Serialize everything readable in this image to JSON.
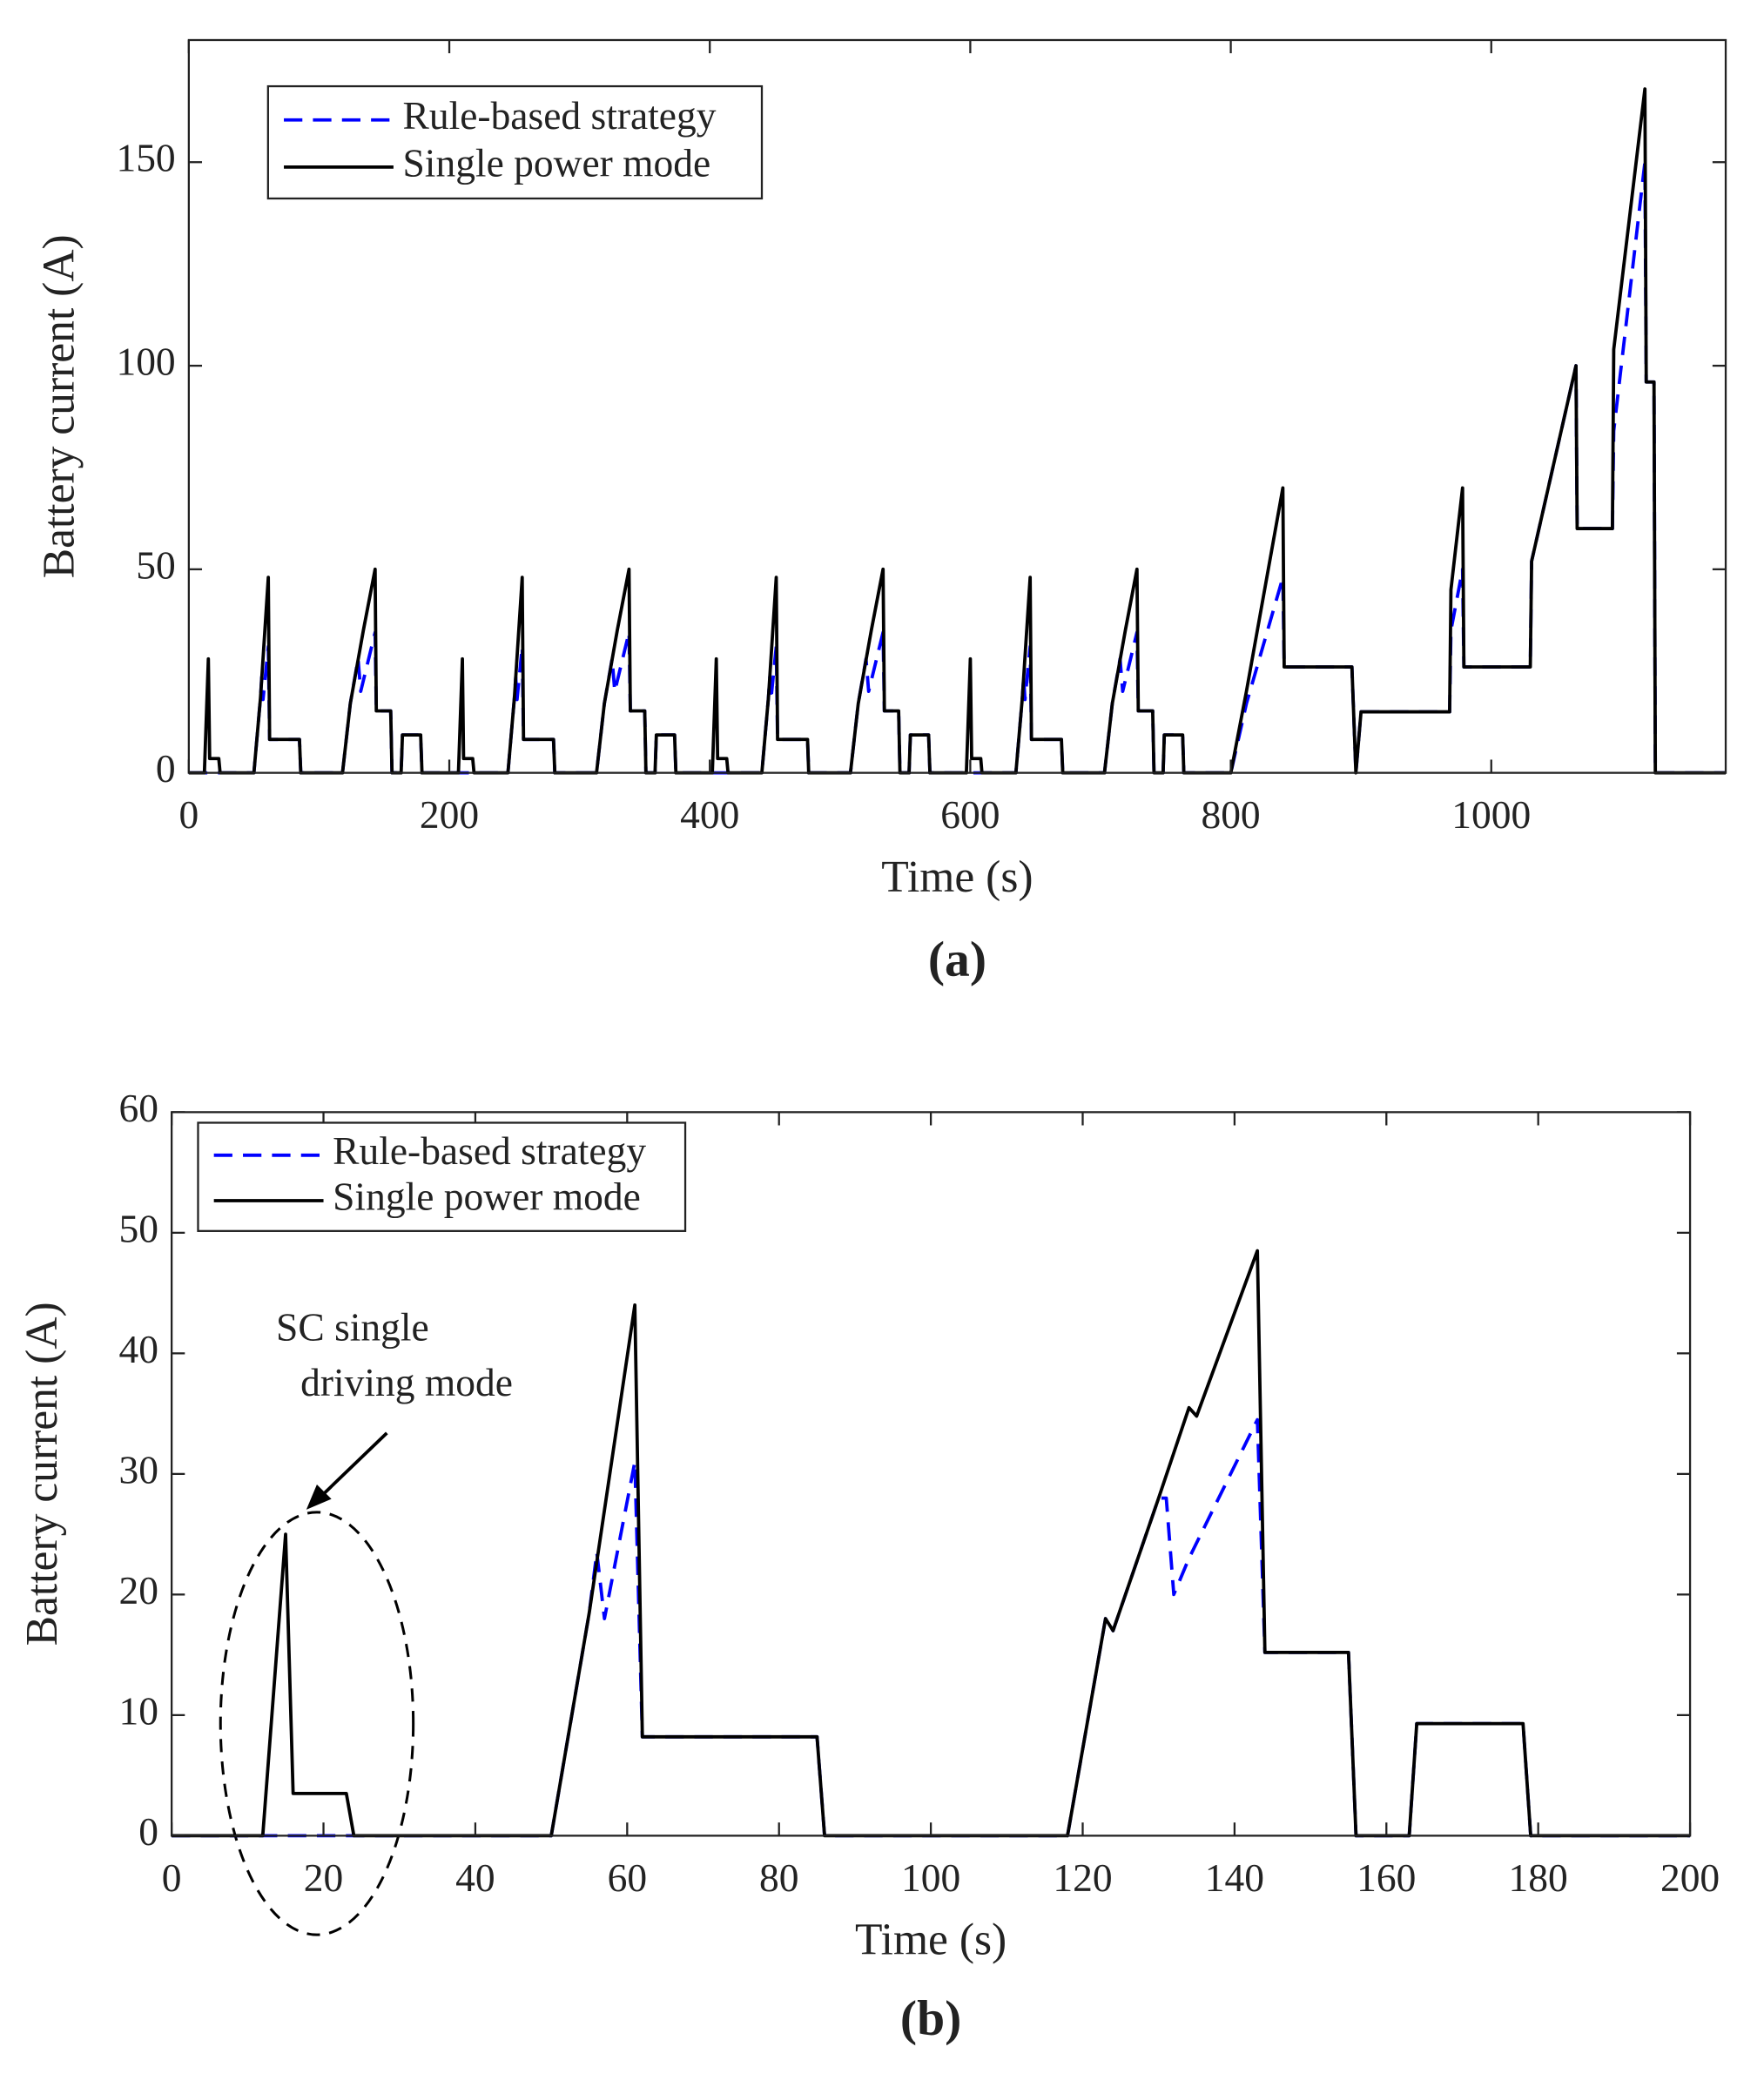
{
  "chart_data": [
    {
      "type": "line",
      "label": "(a)",
      "xlabel": "Time (s)",
      "ylabel": "Battery current (A)",
      "xlim": [
        0,
        1180
      ],
      "ylim": [
        0,
        180
      ],
      "xticks": [
        0,
        200,
        400,
        600,
        800,
        1000
      ],
      "yticks": [
        0,
        50,
        100,
        150
      ],
      "series": [
        {
          "name": "Rule-based strategy",
          "color": "#0000ff",
          "dash": true,
          "x": [
            0,
            12,
            24,
            50,
            55,
            56,
            57,
            61,
            62,
            85,
            86,
            118,
            124,
            130,
            132,
            143,
            144,
            155,
            156,
            163,
            164,
            178,
            179,
            207,
            219,
            245,
            250,
            251,
            252,
            256,
            257,
            280,
            281,
            313,
            319,
            325,
            327,
            338,
            339,
            350,
            351,
            358,
            359,
            373,
            374,
            402,
            414,
            440,
            445,
            446,
            447,
            451,
            452,
            475,
            476,
            508,
            514,
            520,
            522,
            533,
            534,
            545,
            546,
            553,
            554,
            568,
            569,
            597,
            609,
            635,
            640,
            641,
            642,
            646,
            647,
            670,
            671,
            703,
            709,
            715,
            717,
            728,
            729,
            740,
            741,
            748,
            749,
            763,
            764,
            800,
            812,
            840,
            841,
            893,
            896,
            900,
            968,
            969,
            978,
            979,
            1030,
            1031,
            1065,
            1066,
            1093,
            1094,
            1118,
            1119,
            1125,
            1126,
            1180
          ],
          "values": [
            0,
            0,
            0,
            0,
            18.5,
            23.5,
            18,
            31,
            8.2,
            8.2,
            0,
            0,
            17,
            28,
            20,
            34.5,
            15.2,
            15.2,
            0,
            0,
            9.3,
            9.3,
            0,
            0,
            0,
            0,
            18.5,
            23.5,
            18,
            31,
            8.2,
            8.2,
            0,
            0,
            17,
            28,
            20,
            34.5,
            15.2,
            15.2,
            0,
            0,
            9.3,
            9.3,
            0,
            0,
            0,
            0,
            18.5,
            23.5,
            18,
            31,
            8.2,
            8.2,
            0,
            0,
            17,
            28,
            20,
            34.5,
            15.2,
            15.2,
            0,
            0,
            9.3,
            9.3,
            0,
            0,
            0,
            0,
            18.5,
            23.5,
            18,
            31,
            8.2,
            8.2,
            0,
            0,
            17,
            28,
            20,
            34.5,
            15.2,
            15.2,
            0,
            0,
            9.3,
            9.3,
            0,
            0,
            17,
            48,
            26,
            26,
            0,
            15,
            15,
            35,
            50,
            26,
            26,
            52,
            100,
            60,
            60,
            84,
            150,
            96,
            96,
            0,
            0
          ]
        },
        {
          "name": "Single power mode",
          "color": "#000000",
          "dash": false,
          "x": [
            0,
            12,
            15,
            16,
            23,
            24,
            50,
            55,
            61,
            62,
            85,
            86,
            118,
            124,
            134,
            143,
            144,
            155,
            156,
            163,
            164,
            178,
            179,
            207,
            210,
            211,
            218,
            219,
            245,
            250,
            256,
            257,
            280,
            281,
            313,
            319,
            329,
            338,
            339,
            350,
            351,
            358,
            359,
            373,
            374,
            402,
            405,
            406,
            413,
            414,
            440,
            445,
            451,
            452,
            475,
            476,
            508,
            514,
            524,
            533,
            534,
            545,
            546,
            553,
            554,
            568,
            569,
            597,
            600,
            601,
            608,
            609,
            635,
            640,
            646,
            647,
            670,
            671,
            703,
            709,
            719,
            728,
            729,
            740,
            741,
            748,
            749,
            763,
            764,
            800,
            812,
            840,
            841,
            893,
            896,
            900,
            968,
            969,
            978,
            979,
            1030,
            1031,
            1065,
            1066,
            1093,
            1094,
            1118,
            1119,
            1125,
            1126,
            1180
          ],
          "values": [
            0,
            0,
            28,
            3.5,
            3.5,
            0,
            0,
            18.5,
            48,
            8.2,
            8.2,
            0,
            0,
            17,
            35,
            50,
            15.2,
            15.2,
            0,
            0,
            9.3,
            9.3,
            0,
            0,
            28,
            3.5,
            3.5,
            0,
            0,
            18.5,
            48,
            8.2,
            8.2,
            0,
            0,
            17,
            35,
            50,
            15.2,
            15.2,
            0,
            0,
            9.3,
            9.3,
            0,
            0,
            28,
            3.5,
            3.5,
            0,
            0,
            18.5,
            48,
            8.2,
            8.2,
            0,
            0,
            17,
            35,
            50,
            15.2,
            15.2,
            0,
            0,
            9.3,
            9.3,
            0,
            0,
            28,
            3.5,
            3.5,
            0,
            0,
            18.5,
            48,
            8.2,
            8.2,
            0,
            0,
            17,
            35,
            50,
            15.2,
            15.2,
            0,
            0,
            9.3,
            9.3,
            0,
            0,
            20,
            70,
            26,
            26,
            0,
            15,
            15,
            45,
            70,
            26,
            26,
            52,
            100,
            60,
            60,
            104,
            168,
            96,
            96,
            0,
            0
          ]
        }
      ]
    },
    {
      "type": "line",
      "label": "(b)",
      "xlabel": "Time (s)",
      "ylabel": "Battery current (A)",
      "annotation": [
        "SC single",
        "driving mode"
      ],
      "xlim": [
        0,
        200
      ],
      "ylim": [
        0,
        60
      ],
      "xticks": [
        0,
        20,
        40,
        60,
        80,
        100,
        120,
        140,
        160,
        180,
        200
      ],
      "yticks": [
        0,
        10,
        20,
        30,
        40,
        50,
        60
      ],
      "series": [
        {
          "name": "Rule-based strategy",
          "color": "#0000ff",
          "dash": true,
          "x": [
            0,
            50,
            55,
            56,
            57,
            61,
            62,
            85,
            86,
            118,
            123,
            124,
            130,
            131,
            132,
            134,
            143,
            144,
            155,
            156,
            163,
            164,
            178,
            179,
            200
          ],
          "values": [
            0,
            0,
            18.5,
            23.5,
            18,
            31,
            8.2,
            8.2,
            0,
            0,
            18,
            17,
            28,
            28,
            20,
            23,
            34.5,
            15.2,
            15.2,
            0,
            0,
            9.3,
            9.3,
            0,
            0
          ]
        },
        {
          "name": "Single power mode",
          "color": "#000000",
          "dash": false,
          "x": [
            0,
            12,
            15,
            16,
            23,
            24,
            50,
            55,
            61,
            62,
            85,
            86,
            118,
            123,
            124,
            130,
            134,
            135,
            143,
            144,
            155,
            156,
            163,
            164,
            178,
            179,
            200
          ],
          "values": [
            0,
            0,
            25,
            3.5,
            3.5,
            0,
            0,
            18.5,
            44,
            8.2,
            8.2,
            0,
            0,
            18,
            17,
            28,
            35.5,
            34.8,
            48.5,
            15.2,
            15.2,
            0,
            0,
            9.3,
            9.3,
            0,
            0
          ]
        }
      ]
    }
  ]
}
